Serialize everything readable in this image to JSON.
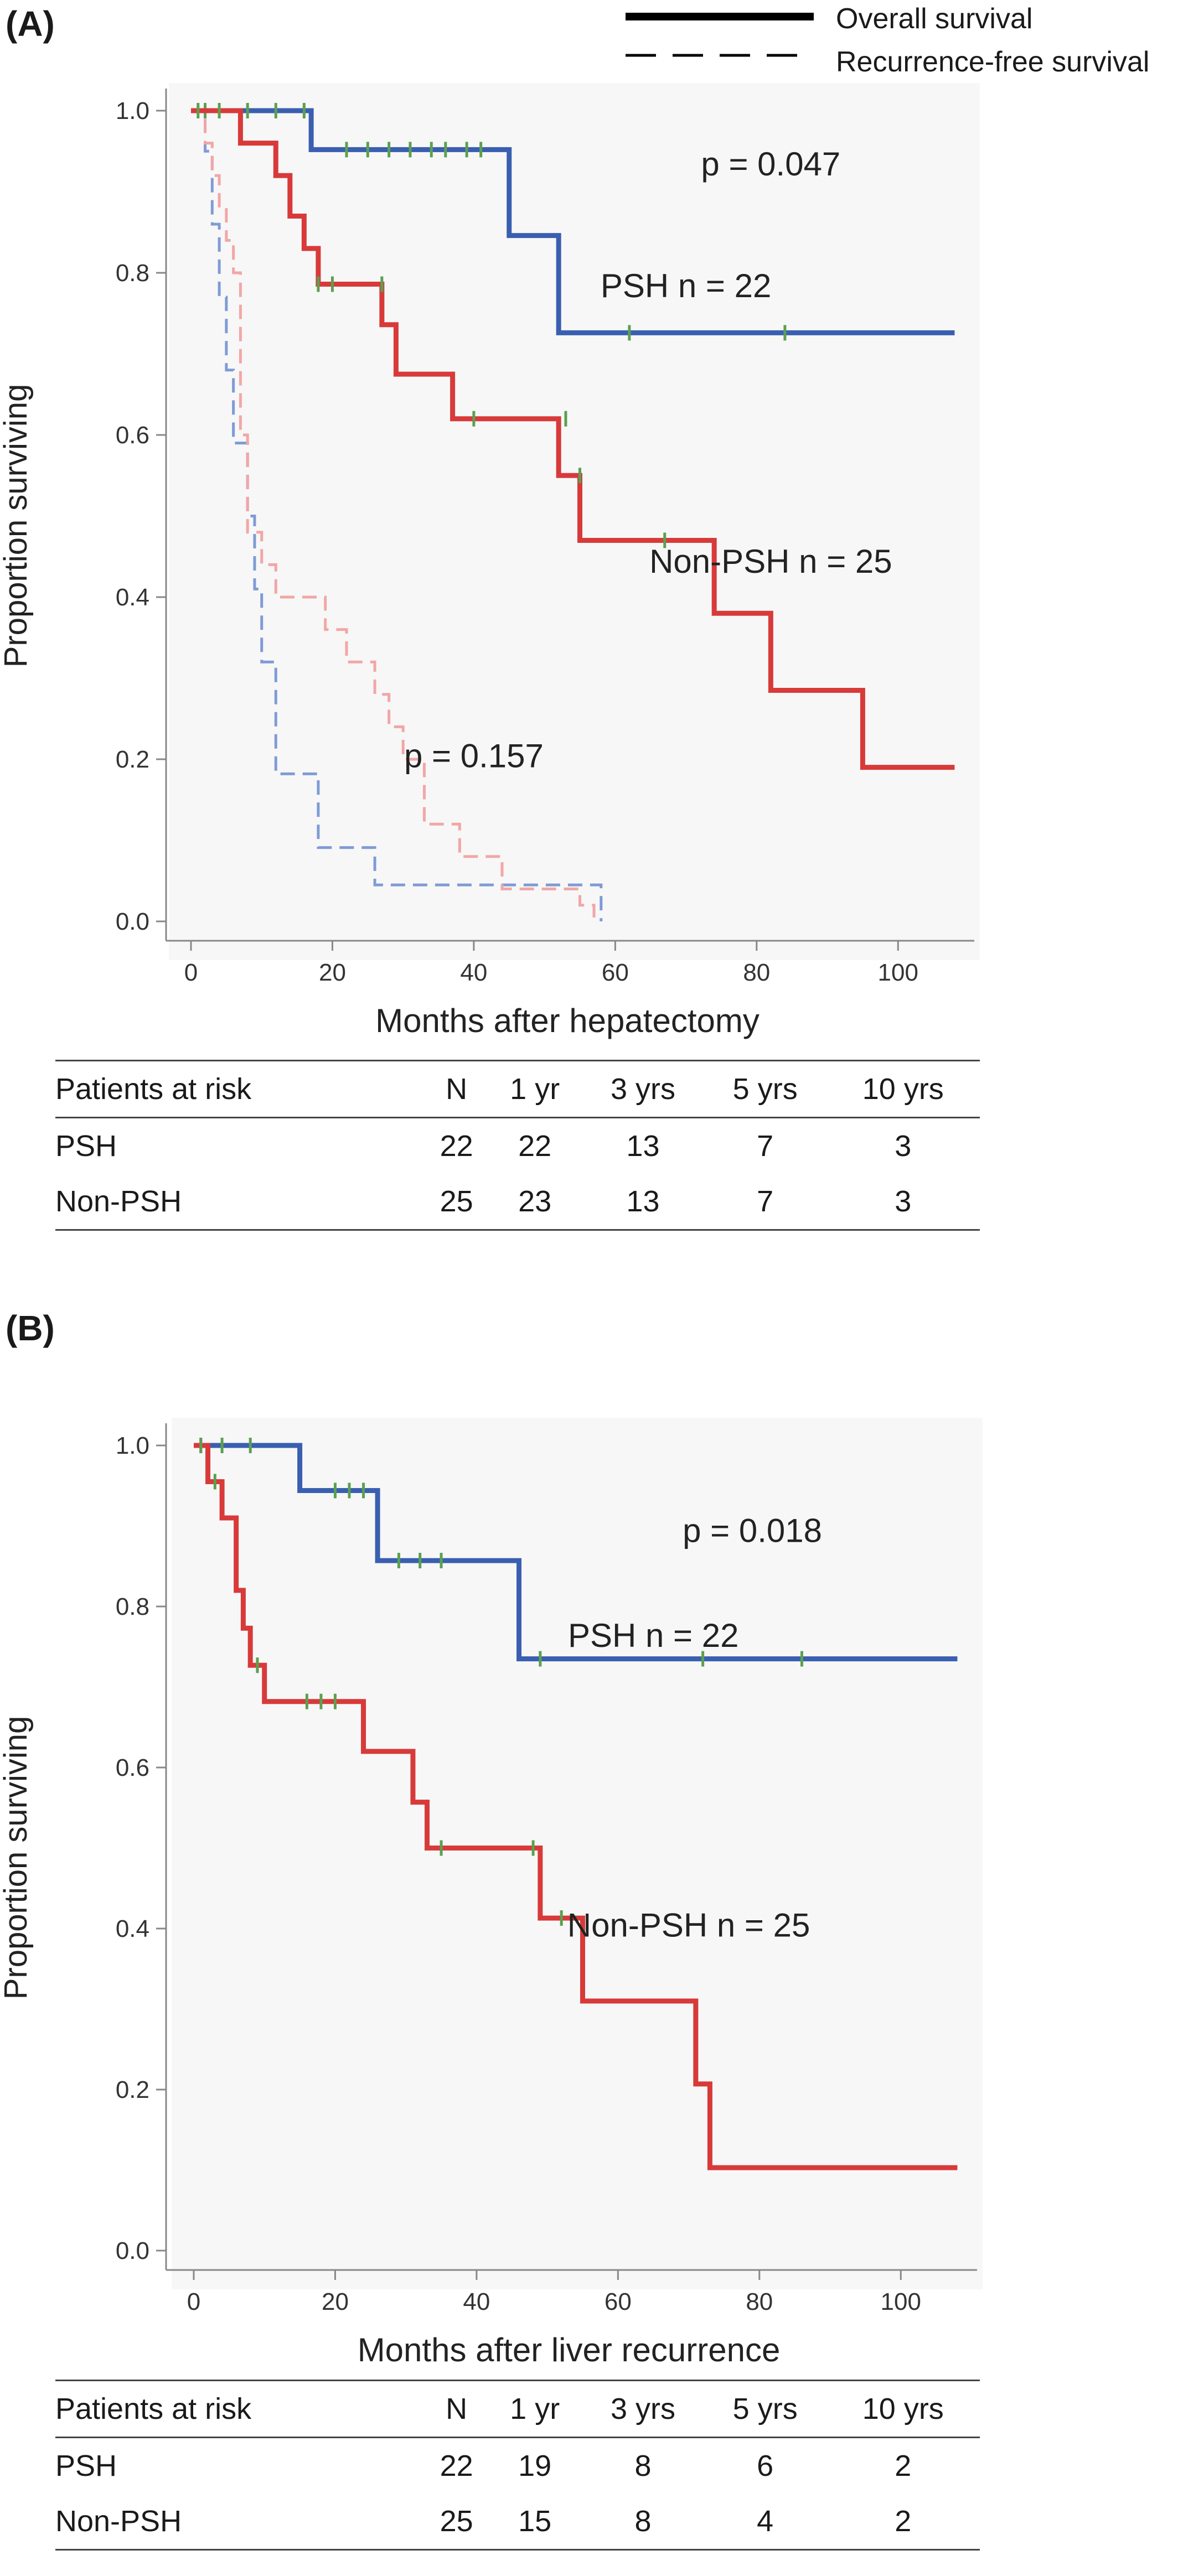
{
  "legend": {
    "solid": "Overall survival",
    "dashed": "Recurrence-free survival"
  },
  "colors": {
    "psh": "#3a5fb0",
    "non_psh": "#d83a3a",
    "psh_light": "#7f9bd6",
    "non_psh_light": "#f2a6a6",
    "censor": "#5aa050",
    "axis": "#888888"
  },
  "chart_data": [
    {
      "panel_label": "(A)",
      "type": "line",
      "xlabel": "Months after hepatectomy",
      "ylabel": "Proportion surviving",
      "xlim": [
        0,
        110
      ],
      "ylim": [
        0,
        1.0
      ],
      "xticks": [
        "0",
        "20",
        "40",
        "60",
        "80",
        "100"
      ],
      "yticks": [
        "0.0",
        "0.2",
        "0.4",
        "0.6",
        "0.8",
        "1.0"
      ],
      "annotations": [
        {
          "text": "p = 0.047",
          "x": 82,
          "y": 0.92
        },
        {
          "text": "PSH  n = 22",
          "x": 70,
          "y": 0.77
        },
        {
          "text": "Non-PSH  n = 25",
          "x": 82,
          "y": 0.43
        },
        {
          "text": "p = 0.157",
          "x": 40,
          "y": 0.19
        }
      ],
      "series": [
        {
          "label": "PSH  n = 22",
          "curve": "overall",
          "style": "solid",
          "color": "#3a5fb0",
          "x": [
            0,
            17,
            45,
            52,
            54,
            108
          ],
          "y": [
            1.0,
            0.952,
            0.846,
            0.726,
            0.726,
            0.726
          ],
          "censor_x": [
            2,
            8,
            12,
            16,
            22,
            25,
            28,
            31,
            34,
            36,
            39,
            41,
            62,
            84
          ],
          "censor_y": [
            1.0,
            1.0,
            1.0,
            1.0,
            0.952,
            0.952,
            0.952,
            0.952,
            0.952,
            0.952,
            0.952,
            0.952,
            0.726,
            0.726
          ]
        },
        {
          "label": "Non-PSH  n = 25",
          "curve": "overall",
          "style": "solid",
          "color": "#d83a3a",
          "x": [
            0,
            7,
            12,
            14,
            16,
            18,
            27,
            29,
            37,
            40,
            52,
            55,
            58,
            74,
            82,
            95,
            108
          ],
          "y": [
            1.0,
            0.96,
            0.92,
            0.87,
            0.83,
            0.786,
            0.736,
            0.675,
            0.62,
            0.62,
            0.55,
            0.47,
            0.47,
            0.38,
            0.285,
            0.19,
            0.19
          ],
          "censor_x": [
            1,
            4,
            18,
            20,
            27,
            40,
            53,
            55,
            67
          ],
          "censor_y": [
            1.0,
            1.0,
            0.786,
            0.786,
            0.786,
            0.62,
            0.62,
            0.55,
            0.47
          ]
        },
        {
          "label": "PSH  n = 22",
          "curve": "recurrence_free",
          "style": "dashed",
          "color": "#7f9bd6",
          "x": [
            0,
            2,
            3,
            4,
            5,
            6,
            8,
            9,
            10,
            12,
            18,
            26,
            58,
            58
          ],
          "y": [
            1.0,
            0.95,
            0.86,
            0.77,
            0.68,
            0.59,
            0.5,
            0.41,
            0.32,
            0.182,
            0.091,
            0.045,
            0.045,
            0.0
          ]
        },
        {
          "label": "Non-PSH  n = 25",
          "curve": "recurrence_free",
          "style": "dashed",
          "color": "#f2a6a6",
          "x": [
            0,
            2,
            3,
            4,
            5,
            6,
            7,
            8,
            10,
            12,
            14,
            19,
            22,
            26,
            28,
            30,
            33,
            38,
            44,
            55,
            57
          ],
          "y": [
            1.0,
            0.96,
            0.92,
            0.88,
            0.84,
            0.8,
            0.6,
            0.48,
            0.44,
            0.4,
            0.4,
            0.36,
            0.32,
            0.28,
            0.24,
            0.2,
            0.12,
            0.08,
            0.04,
            0.02,
            0.0
          ]
        }
      ]
    },
    {
      "panel_label": "(B)",
      "type": "line",
      "xlabel": "Months after liver recurrence",
      "ylabel": "Proportion surviving",
      "xlim": [
        0,
        110
      ],
      "ylim": [
        0,
        1.0
      ],
      "xticks": [
        "0",
        "20",
        "40",
        "60",
        "80",
        "100"
      ],
      "yticks": [
        "0.0",
        "0.2",
        "0.4",
        "0.6",
        "0.8",
        "1.0"
      ],
      "annotations": [
        {
          "text": "p = 0.018",
          "x": 79,
          "y": 0.88
        },
        {
          "text": "PSH  n = 22",
          "x": 65,
          "y": 0.75
        },
        {
          "text": "Non-PSH  n = 25",
          "x": 70,
          "y": 0.39
        }
      ],
      "series": [
        {
          "label": "PSH  n = 22",
          "curve": "overall",
          "style": "solid",
          "color": "#3a5fb0",
          "x": [
            0,
            15,
            26,
            46,
            108
          ],
          "y": [
            1.0,
            0.944,
            0.857,
            0.735,
            0.735
          ],
          "censor_x": [
            1,
            4,
            8,
            20,
            22,
            24,
            29,
            32,
            35,
            49,
            72,
            86
          ],
          "censor_y": [
            1.0,
            1.0,
            1.0,
            0.944,
            0.944,
            0.944,
            0.857,
            0.857,
            0.857,
            0.735,
            0.735,
            0.735
          ]
        },
        {
          "label": "Non-PSH  n = 25",
          "curve": "overall",
          "style": "solid",
          "color": "#d83a3a",
          "x": [
            0,
            2,
            4,
            6,
            7,
            8,
            10,
            24,
            31,
            33,
            35,
            49,
            55,
            71,
            73,
            108
          ],
          "y": [
            1.0,
            0.955,
            0.91,
            0.82,
            0.773,
            0.727,
            0.682,
            0.62,
            0.557,
            0.5,
            0.5,
            0.413,
            0.31,
            0.207,
            0.103,
            0.103
          ],
          "censor_x": [
            1,
            3,
            9,
            16,
            18,
            20,
            35,
            48,
            52
          ],
          "censor_y": [
            1.0,
            0.955,
            0.727,
            0.682,
            0.682,
            0.682,
            0.5,
            0.5,
            0.413
          ]
        }
      ]
    }
  ],
  "risk_tables": [
    {
      "headers": [
        "Patients at risk",
        "N",
        "1 yr",
        "3 yrs",
        "5 yrs",
        "10 yrs"
      ],
      "rows": [
        [
          "PSH",
          "22",
          "22",
          "13",
          "7",
          "3"
        ],
        [
          "Non-PSH",
          "25",
          "23",
          "13",
          "7",
          "3"
        ]
      ]
    },
    {
      "headers": [
        "Patients at risk",
        "N",
        "1 yr",
        "3 yrs",
        "5 yrs",
        "10 yrs"
      ],
      "rows": [
        [
          "PSH",
          "22",
          "19",
          "8",
          "6",
          "2"
        ],
        [
          "Non-PSH",
          "25",
          "15",
          "8",
          "4",
          "2"
        ]
      ]
    }
  ]
}
